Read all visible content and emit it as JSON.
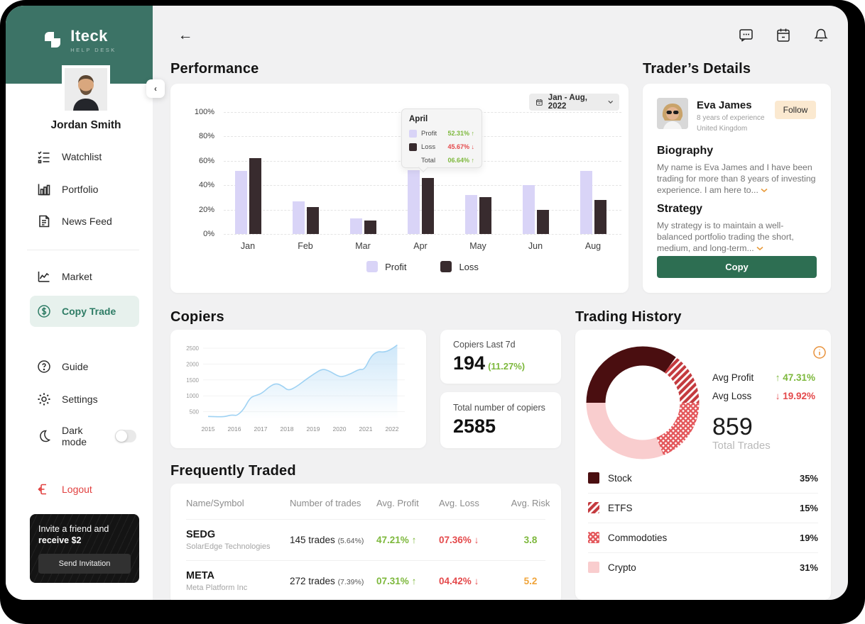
{
  "brand": {
    "name": "Iteck",
    "tagline": "HELP DESK"
  },
  "sidebar": {
    "user_name": "Jordan Smith",
    "nav_primary": [
      {
        "label": "Watchlist"
      },
      {
        "label": "Portfolio"
      },
      {
        "label": "News Feed"
      }
    ],
    "nav_secondary": [
      {
        "label": "Market"
      },
      {
        "label": "Copy Trade",
        "active": true
      }
    ],
    "nav_tertiary": [
      {
        "label": "Guide"
      },
      {
        "label": "Settings"
      },
      {
        "label": "Dark mode",
        "toggle": "off"
      }
    ],
    "logout_label": "Logout",
    "invite": {
      "line": "Invite a friend and ",
      "bold": "receive $2",
      "button_label": "Send Invitation"
    }
  },
  "performance": {
    "title": "Performance",
    "date_range": "Jan - Aug, 2022",
    "legend": {
      "profit": "Profit",
      "loss": "Loss"
    },
    "tooltip": {
      "title": "April",
      "rows": [
        {
          "label": "Profit",
          "value": "52.31%",
          "arrow": "↑",
          "trend": "up"
        },
        {
          "label": "Loss",
          "value": "45.67%",
          "arrow": "↓",
          "trend": "down"
        },
        {
          "label": "Total",
          "value": "06.64%",
          "arrow": "↑",
          "trend": "up"
        }
      ]
    },
    "chart_data": {
      "type": "bar",
      "categories": [
        "Jan",
        "Feb",
        "Mar",
        "Apr",
        "May",
        "Jun",
        "Aug"
      ],
      "series": [
        {
          "name": "Profit",
          "values": [
            52,
            27,
            13,
            52.31,
            32,
            40,
            52
          ]
        },
        {
          "name": "Loss",
          "values": [
            62,
            22,
            11,
            45.67,
            30,
            20,
            28
          ]
        }
      ],
      "ylabel": "",
      "xlabel": "",
      "ylim": [
        0,
        100
      ],
      "yticks": [
        "100%",
        "80%",
        "60%",
        "40%",
        "20%",
        "0%"
      ],
      "legend_position": "bottom",
      "grid": "dashed-horizontal"
    }
  },
  "trader": {
    "title": "Trader’s Details",
    "name": "Eva James",
    "experience": "8 years of experience",
    "country": "United Kingdom",
    "follow_label": "Follow",
    "biography_title": "Biography",
    "biography_text": "My name is Eva James and I have been trading for more than 8 years of investing experience. I am here to...",
    "strategy_title": "Strategy",
    "strategy_text": "My strategy is to maintain a well-balanced portfolio trading the short, medium, and long-term...",
    "copy_label": "Copy"
  },
  "copiers": {
    "title": "Copiers",
    "last7d": {
      "label": "Copiers Last 7d",
      "value": "194",
      "change": "(11.27%)"
    },
    "total": {
      "label": "Total number of copiers",
      "value": "2585"
    },
    "chart_data": {
      "type": "area",
      "xticks": [
        2015,
        2016,
        2017,
        2018,
        2019,
        2020,
        2021,
        2022
      ],
      "yticks": [
        500,
        1000,
        1500,
        2000,
        2500
      ],
      "points": [
        [
          2015.0,
          350
        ],
        [
          2015.35,
          340
        ],
        [
          2015.65,
          345
        ],
        [
          2015.85,
          395
        ],
        [
          2016.0,
          390
        ],
        [
          2016.1,
          380
        ],
        [
          2016.35,
          560
        ],
        [
          2016.6,
          950
        ],
        [
          2016.85,
          1020
        ],
        [
          2017.05,
          1080
        ],
        [
          2017.35,
          1300
        ],
        [
          2017.6,
          1400
        ],
        [
          2017.85,
          1300
        ],
        [
          2018.05,
          1160
        ],
        [
          2018.35,
          1280
        ],
        [
          2018.7,
          1500
        ],
        [
          2019.05,
          1700
        ],
        [
          2019.35,
          1850
        ],
        [
          2019.6,
          1790
        ],
        [
          2019.9,
          1640
        ],
        [
          2020.1,
          1590
        ],
        [
          2020.45,
          1700
        ],
        [
          2020.75,
          1840
        ],
        [
          2020.95,
          1820
        ],
        [
          2021.2,
          2250
        ],
        [
          2021.45,
          2400
        ],
        [
          2021.7,
          2370
        ],
        [
          2021.95,
          2450
        ],
        [
          2022.2,
          2600
        ]
      ],
      "line_color": "#9fd2f3",
      "fill_color": "#cfe7f9"
    }
  },
  "frequently_traded": {
    "title": "Frequently Traded",
    "columns": [
      "Name/Symbol",
      "Number of trades",
      "Avg. Profit",
      "Avg. Loss",
      "Avg. Risk"
    ],
    "rows": [
      {
        "symbol": "SEDG",
        "company": "SolarEdge Technologies",
        "trades": "145 trades",
        "trades_pct": "(5.64%)",
        "avg_profit": "47.21%",
        "profit_arrow": "↑",
        "avg_loss": "07.36%",
        "loss_arrow": "↓",
        "avg_risk": "3.8",
        "risk_level": "low"
      },
      {
        "symbol": "META",
        "company": "Meta Platform Inc",
        "trades": "272 trades",
        "trades_pct": "(7.39%)",
        "avg_profit": "07.31%",
        "profit_arrow": "↑",
        "avg_loss": "04.42%",
        "loss_arrow": "↓",
        "avg_risk": "5.2",
        "risk_level": "medium"
      }
    ]
  },
  "trading_history": {
    "title": "Trading History",
    "avg_profit_label": "Avg Profit",
    "avg_profit_arrow": "↑",
    "avg_profit_value": "47.31%",
    "avg_loss_label": "Avg Loss",
    "avg_loss_arrow": "↓",
    "avg_loss_value": "19.92%",
    "total_trades_value": "859",
    "total_trades_label": "Total Trades",
    "legend": [
      {
        "label": "Stock",
        "value": "35%"
      },
      {
        "label": "ETFS",
        "value": "15%"
      },
      {
        "label": "Commodoties",
        "value": "19%"
      },
      {
        "label": "Crypto",
        "value": "31%"
      }
    ],
    "chart_data": {
      "type": "pie",
      "labels": [
        "Stock",
        "ETFS",
        "Commodoties",
        "Crypto"
      ],
      "values": [
        35,
        15,
        19,
        31
      ],
      "colors": [
        "#4a0e10",
        "stripe-pattern",
        "crosshatch-pattern",
        "#f9cdce"
      ],
      "start_angle_deg": 270,
      "direction": "clockwise"
    }
  },
  "colors": {
    "sidebar_green": "#3c7366",
    "active_teal": "#2e7c65",
    "profit_green": "#7db83c",
    "loss_red": "#e4494b",
    "amber": "#f0a43a",
    "lavender": "#d9d4f7",
    "dark_bar": "#382b2e",
    "follow_peach": "#fbe9d0",
    "copy_green": "#2d6e52",
    "maroon": "#4a0e10",
    "pink": "#f9cdce"
  }
}
